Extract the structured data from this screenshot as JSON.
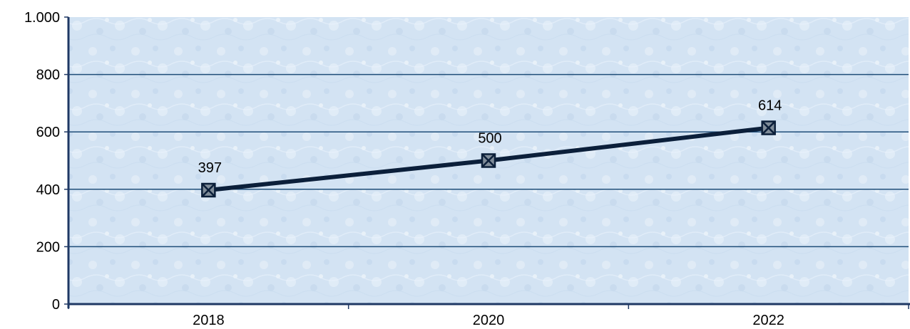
{
  "chart_data": {
    "type": "line",
    "categories": [
      "2018",
      "2020",
      "2022"
    ],
    "values": [
      397,
      500,
      614
    ],
    "data_labels": [
      "397",
      "500",
      "614"
    ],
    "title": "",
    "xlabel": "",
    "ylabel": "",
    "ylim": [
      0,
      1000
    ],
    "yticks": [
      0,
      200,
      400,
      600,
      800,
      1000
    ],
    "ytick_labels": [
      "0",
      "200",
      "400",
      "600",
      "800",
      "1.000"
    ],
    "grid": true,
    "legend": "none",
    "marker": "square-x",
    "colors": {
      "line": "#0b1f3a",
      "gridline": "#1f4e79",
      "axis": "#1f3864",
      "plot_background": "#d4e4f4",
      "plot_texture": "#ffffff"
    }
  }
}
